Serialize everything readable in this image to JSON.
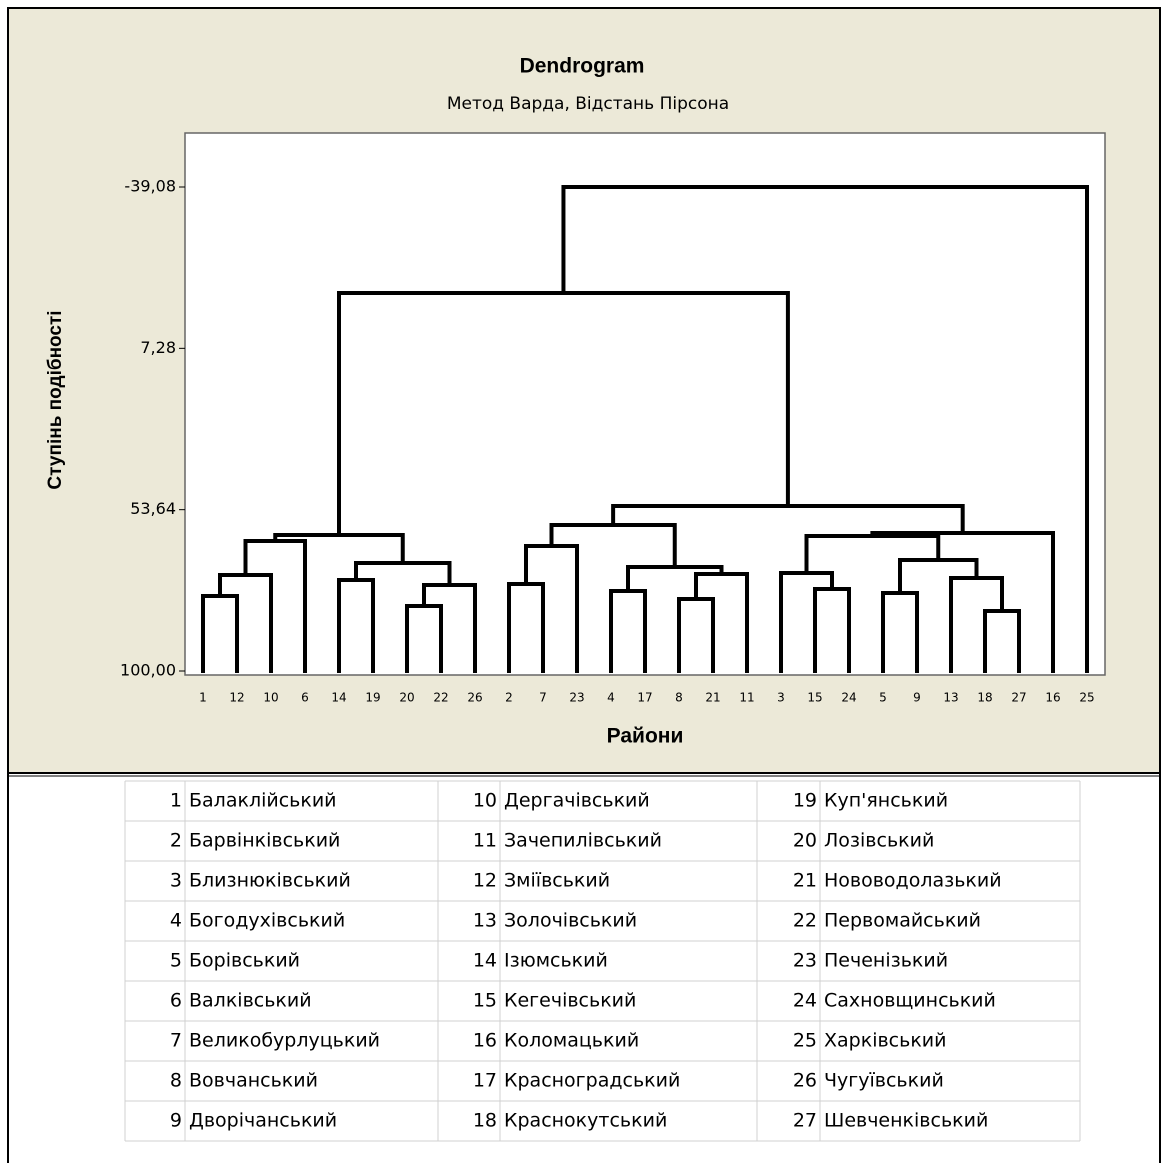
{
  "chart_data": {
    "type": "dendrogram",
    "title": "Dendrogram",
    "subtitle": "Метод Варда, Відстань Пірсона",
    "y_label": "Ступінь подібності",
    "x_label": "Райони",
    "categories": [
      "1",
      "12",
      "10",
      "6",
      "14",
      "19",
      "20",
      "22",
      "26",
      "2",
      "7",
      "23",
      "4",
      "17",
      "8",
      "21",
      "11",
      "3",
      "15",
      "24",
      "5",
      "9",
      "13",
      "18",
      "27",
      "16",
      "25"
    ],
    "merges": [
      {
        "left": 0,
        "right": 1,
        "height": 78.45
      },
      {
        "left": 27,
        "right": 2,
        "height": 72.42
      },
      {
        "left": 28,
        "right": 3,
        "height": 62.65
      },
      {
        "left": 6,
        "right": 7,
        "height": 81.32
      },
      {
        "left": 30,
        "right": 8,
        "height": 75.29
      },
      {
        "left": 4,
        "right": 5,
        "height": 73.85
      },
      {
        "left": 32,
        "right": 31,
        "height": 68.97
      },
      {
        "left": 29,
        "right": 33,
        "height": 60.92
      },
      {
        "left": 9,
        "right": 10,
        "height": 75.0
      },
      {
        "left": 35,
        "right": 11,
        "height": 64.08
      },
      {
        "left": 14,
        "right": 15,
        "height": 79.31
      },
      {
        "left": 37,
        "right": 16,
        "height": 72.13
      },
      {
        "left": 12,
        "right": 13,
        "height": 77.01
      },
      {
        "left": 39,
        "right": 38,
        "height": 70.12
      },
      {
        "left": 36,
        "right": 40,
        "height": 58.05
      },
      {
        "left": 18,
        "right": 19,
        "height": 76.44
      },
      {
        "left": 17,
        "right": 42,
        "height": 71.84
      },
      {
        "left": 20,
        "right": 21,
        "height": 77.59
      },
      {
        "left": 23,
        "right": 24,
        "height": 82.76
      },
      {
        "left": 22,
        "right": 45,
        "height": 73.27
      },
      {
        "left": 44,
        "right": 46,
        "height": 68.1
      },
      {
        "left": 43,
        "right": 47,
        "height": 61.21
      },
      {
        "left": 48,
        "right": 25,
        "height": 60.35
      },
      {
        "left": 41,
        "right": 49,
        "height": 52.59
      },
      {
        "left": 34,
        "right": 50,
        "height": -8.62
      },
      {
        "left": 51,
        "right": 26,
        "height": -39.08
      }
    ],
    "ylim": [
      100,
      -39.08
    ],
    "yticks": [
      {
        "value": -39.08,
        "label": "-39,08"
      },
      {
        "value": 7.28,
        "label": "7,28"
      },
      {
        "value": 53.64,
        "label": "53,64"
      },
      {
        "value": 100,
        "label": "100,00"
      }
    ],
    "color": "#000000"
  },
  "table": {
    "rows": [
      [
        1,
        "Балаклійський",
        10,
        "Дергачівський",
        19,
        "Куп'янський"
      ],
      [
        2,
        "Барвінківський",
        11,
        "Зачепилівський",
        20,
        "Лозівський"
      ],
      [
        3,
        "Близнюківський",
        12,
        "Зміївський",
        21,
        "Нововодолазький"
      ],
      [
        4,
        "Богодухівський",
        13,
        "Золочівський",
        22,
        "Первомайський"
      ],
      [
        5,
        "Борівський",
        14,
        "Ізюмський",
        23,
        "Печенізький"
      ],
      [
        6,
        "Валківський",
        15,
        "Кегечівський",
        24,
        "Сахновщинський"
      ],
      [
        7,
        "Великобурлуцький",
        16,
        "Коломацький",
        25,
        "Харківський"
      ],
      [
        8,
        "Вовчанський",
        17,
        "Красноградський",
        26,
        "Чугуївський"
      ],
      [
        9,
        "Дворічанський",
        18,
        "Краснокутський",
        27,
        "Шевченківський"
      ]
    ]
  }
}
